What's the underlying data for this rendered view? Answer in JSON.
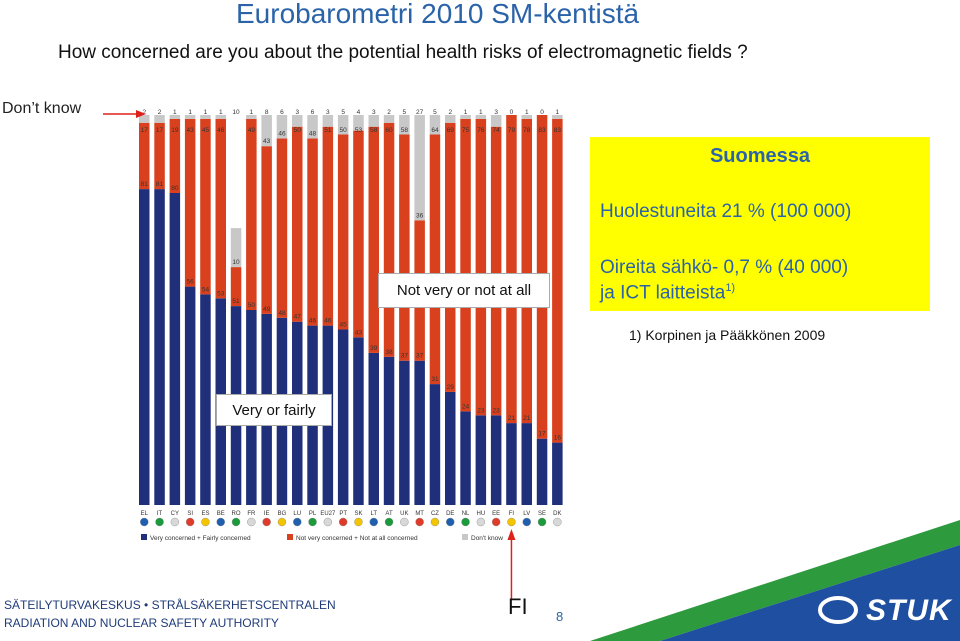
{
  "header": {
    "title": "Eurobarometri 2010  SM-kentistä",
    "question": "How concerned are you about the potential health risks of electromagnetic fields ?",
    "dont_know_label": "Don’t know"
  },
  "chart_data": {
    "type": "bar",
    "stacked": true,
    "orientation": "vertical",
    "categories": [
      "EL",
      "IT",
      "CY",
      "SI",
      "ES",
      "BE",
      "RO",
      "FR",
      "IE",
      "BG",
      "LU",
      "PL",
      "EU27",
      "PT",
      "SK",
      "LT",
      "AT",
      "UK",
      "MT",
      "CZ",
      "DE",
      "NL",
      "HU",
      "EE",
      "FI",
      "LV",
      "SE",
      "DK"
    ],
    "series": [
      {
        "name": "Very concerned + Fairly concerned",
        "color": "#1f2f7a",
        "values": [
          81,
          81,
          80,
          56,
          54,
          53,
          51,
          50,
          49,
          48,
          47,
          46,
          46,
          45,
          43,
          39,
          38,
          37,
          37,
          31,
          29,
          24,
          23,
          23,
          21,
          21,
          17,
          16
        ]
      },
      {
        "name": "Not very concerned + Not at all concerned",
        "color": "#d9411e",
        "values": [
          17,
          17,
          19,
          43,
          45,
          46,
          10,
          49,
          43,
          46,
          50,
          48,
          51,
          50,
          53,
          58,
          60,
          58,
          36,
          64,
          69,
          75,
          76,
          74,
          79,
          78,
          83,
          83
        ]
      },
      {
        "name": "Don't know",
        "color": "#c8c8c8",
        "values": [
          2,
          2,
          1,
          1,
          1,
          1,
          10,
          1,
          8,
          6,
          3,
          6,
          3,
          5,
          4,
          3,
          2,
          5,
          27,
          5,
          2,
          1,
          1,
          3,
          0,
          1,
          0,
          1
        ]
      }
    ],
    "ylim": [
      0,
      100
    ],
    "annotations": [
      "Not very or not at all",
      "Very or fairly"
    ],
    "legend": {
      "position": "bottom-left",
      "entries": [
        "Very concerned + Fairly concerned",
        "Not very concerned + Not at all concerned",
        "Don't know"
      ]
    },
    "highlight_category": "FI"
  },
  "labels": {
    "not_very": "Not very or not at all",
    "very": "Very or fairly"
  },
  "finland_box": {
    "title": "Suomessa",
    "line1": "Huolestuneita    21 %  (100 000)",
    "line2": "Oireita sähkö-     0,7 % (40 000)",
    "line3": "ja ICT laitteista",
    "line3_sup": "1)"
  },
  "footnote": "1) Korpinen ja Pääkkönen 2009",
  "footer": {
    "highlight_label": "FI",
    "page_number": "8",
    "org_line1": "SÄTEILYTURVAKESKUS • STRÅLSÄKERHETSCENTRALEN",
    "org_line2": "RADIATION AND NUCLEAR SAFETY AUTHORITY",
    "logo_text": "STUK"
  },
  "colors": {
    "title": "#2b63a8",
    "very": "#1f2f7a",
    "not_very": "#d9411e",
    "dont_know": "#c8c8c8",
    "box_bg": "#ffff00",
    "arrow": "#e0201b",
    "footer_green": "#2e9a3e",
    "footer_blue": "#1f4fa0"
  }
}
